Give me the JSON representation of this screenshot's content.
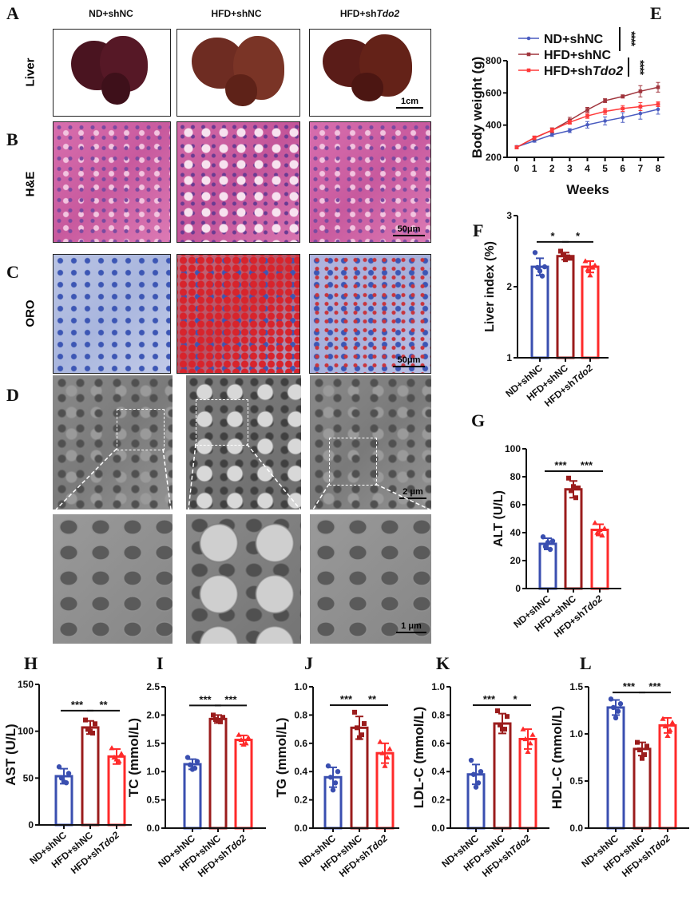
{
  "panel_letters": [
    "A",
    "B",
    "C",
    "D",
    "E",
    "F",
    "G",
    "H",
    "I",
    "J",
    "K",
    "L"
  ],
  "histology": {
    "columns": [
      {
        "main": "ND+shNC",
        "italic": ""
      },
      {
        "main": "HFD+shNC",
        "italic": ""
      },
      {
        "main": "HFD+sh",
        "italic": "Tdo2"
      }
    ],
    "row_labels": {
      "liver": "Liver",
      "he": "H&E",
      "oro": "ORO"
    },
    "scale_bars": {
      "liver": "1cm",
      "he": "50μm",
      "oro": "50μm",
      "tem_low": "2 μm",
      "tem_high": "1 μm"
    }
  },
  "colors": {
    "ND+shNC": "#3a4fb0",
    "HFD+shNC": "#9b1c1c",
    "HFD+shTdo2": "#ff2a2a"
  },
  "chart_data": [
    {
      "id": "E",
      "type": "line",
      "xlabel": "Weeks",
      "ylabel": "Body weight (g)",
      "x": [
        0,
        1,
        2,
        3,
        4,
        5,
        6,
        7,
        8
      ],
      "xticks": [
        "0",
        "1",
        "2",
        "3",
        "4",
        "5",
        "6",
        "7",
        "8"
      ],
      "ylim": [
        200,
        800
      ],
      "yticks": [
        "200",
        "400",
        "600",
        "800"
      ],
      "series": [
        {
          "name": {
            "main": "ND+shNC",
            "italic": ""
          },
          "color": "#4a5cc0",
          "values": [
            265,
            302,
            340,
            366,
            402,
            426,
            447,
            472,
            498
          ],
          "sd": [
            8,
            8,
            10,
            12,
            20,
            25,
            30,
            35,
            30
          ]
        },
        {
          "name": {
            "main": "HFD+shNC",
            "italic": ""
          },
          "color": "#a0353d",
          "values": [
            262,
            320,
            368,
            430,
            495,
            552,
            578,
            610,
            635
          ],
          "sd": [
            8,
            12,
            15,
            18,
            15,
            12,
            10,
            35,
            30
          ]
        },
        {
          "name": {
            "main": "HFD+sh",
            "italic": "Tdo2"
          },
          "color": "#ff3a3a",
          "values": [
            262,
            322,
            368,
            418,
            457,
            485,
            503,
            515,
            530
          ],
          "sd": [
            8,
            10,
            12,
            12,
            15,
            18,
            18,
            25,
            15
          ]
        }
      ],
      "significance": [
        "****",
        "****"
      ]
    },
    {
      "id": "F",
      "type": "bar",
      "ylabel": "Liver index (%)",
      "ylim": [
        1,
        3
      ],
      "yticks": [
        "1",
        "2",
        "3"
      ],
      "categories": [
        {
          "main": "ND+shNC",
          "italic": ""
        },
        {
          "main": "HFD+shNC",
          "italic": ""
        },
        {
          "main": "HFD+sh",
          "italic": "Tdo2"
        }
      ],
      "values": [
        2.28,
        2.43,
        2.28
      ],
      "sd": [
        0.12,
        0.05,
        0.08
      ],
      "points": [
        [
          2.48,
          2.28,
          2.27,
          2.15,
          2.22
        ],
        [
          2.5,
          2.4,
          2.45,
          2.42,
          2.38
        ],
        [
          2.36,
          2.3,
          2.24,
          2.27,
          2.16
        ]
      ],
      "significance": [
        {
          "pair": [
            0,
            1
          ],
          "label": "*",
          "y": 2.63
        },
        {
          "pair": [
            1,
            2
          ],
          "label": "*",
          "y": 2.63
        }
      ]
    },
    {
      "id": "G",
      "type": "bar",
      "ylabel": "ALT (U/L)",
      "ylim": [
        0,
        100
      ],
      "yticks": [
        "0",
        "20",
        "40",
        "60",
        "80",
        "100"
      ],
      "categories": [
        {
          "main": "ND+shNC",
          "italic": ""
        },
        {
          "main": "HFD+shNC",
          "italic": ""
        },
        {
          "main": "HFD+sh",
          "italic": "Tdo2"
        }
      ],
      "values": [
        32,
        71,
        42
      ],
      "sd": [
        4,
        6,
        4
      ],
      "points": [
        [
          37,
          34,
          30,
          28,
          33
        ],
        [
          79,
          72,
          70,
          65,
          73
        ],
        [
          47,
          43,
          40,
          38,
          42
        ]
      ],
      "significance": [
        {
          "pair": [
            0,
            1
          ],
          "label": "***",
          "y": 84
        },
        {
          "pair": [
            1,
            2
          ],
          "label": "***",
          "y": 84
        }
      ]
    },
    {
      "id": "H",
      "type": "bar",
      "ylabel": "AST (U/L)",
      "ylim": [
        0,
        150
      ],
      "yticks": [
        "0",
        "50",
        "100",
        "150"
      ],
      "categories": [
        {
          "main": "ND+shNC",
          "italic": ""
        },
        {
          "main": "HFD+shNC",
          "italic": ""
        },
        {
          "main": "HFD+sh",
          "italic": "Tdo2"
        }
      ],
      "values": [
        52,
        104,
        73
      ],
      "sd": [
        8,
        7,
        8
      ],
      "points": [
        [
          62,
          55,
          50,
          45,
          46
        ],
        [
          112,
          108,
          102,
          98,
          100
        ],
        [
          82,
          76,
          72,
          68,
          70
        ]
      ],
      "significance": [
        {
          "pair": [
            0,
            1
          ],
          "label": "***",
          "y": 122
        },
        {
          "pair": [
            1,
            2
          ],
          "label": "**",
          "y": 122
        }
      ]
    },
    {
      "id": "I",
      "type": "bar",
      "ylabel": "TC (mmol/L)",
      "ylim": [
        0,
        2.5
      ],
      "yticks": [
        "0.0",
        "0.5",
        "1.0",
        "1.5",
        "2.0",
        "2.5"
      ],
      "categories": [
        {
          "main": "ND+shNC",
          "italic": ""
        },
        {
          "main": "HFD+shNC",
          "italic": ""
        },
        {
          "main": "HFD+sh",
          "italic": "Tdo2"
        }
      ],
      "values": [
        1.13,
        1.93,
        1.56
      ],
      "sd": [
        0.09,
        0.07,
        0.08
      ],
      "points": [
        [
          1.25,
          1.18,
          1.12,
          1.06,
          1.04
        ],
        [
          2.0,
          1.96,
          1.92,
          1.88,
          1.9
        ],
        [
          1.65,
          1.6,
          1.56,
          1.5,
          1.48
        ]
      ],
      "significance": [
        {
          "pair": [
            0,
            1
          ],
          "label": "***",
          "y": 2.17
        },
        {
          "pair": [
            1,
            2
          ],
          "label": "***",
          "y": 2.17
        }
      ]
    },
    {
      "id": "J",
      "type": "bar",
      "ylabel": "TG (mmol/L)",
      "ylim": [
        0,
        1.0
      ],
      "yticks": [
        "0.0",
        "0.2",
        "0.4",
        "0.6",
        "0.8",
        "1.0"
      ],
      "categories": [
        {
          "main": "ND+shNC",
          "italic": ""
        },
        {
          "main": "HFD+shNC",
          "italic": ""
        },
        {
          "main": "HFD+sh",
          "italic": "Tdo2"
        }
      ],
      "values": [
        0.36,
        0.71,
        0.53
      ],
      "sd": [
        0.07,
        0.08,
        0.07
      ],
      "points": [
        [
          0.44,
          0.4,
          0.36,
          0.32,
          0.27
        ],
        [
          0.82,
          0.74,
          0.71,
          0.66,
          0.64
        ],
        [
          0.61,
          0.56,
          0.53,
          0.5,
          0.44
        ]
      ],
      "significance": [
        {
          "pair": [
            0,
            1
          ],
          "label": "***",
          "y": 0.87
        },
        {
          "pair": [
            1,
            2
          ],
          "label": "**",
          "y": 0.87
        }
      ]
    },
    {
      "id": "K",
      "type": "bar",
      "ylabel": "LDL-C (mmol/L)",
      "ylim": [
        0,
        1.0
      ],
      "yticks": [
        "0.0",
        "0.2",
        "0.4",
        "0.6",
        "0.8",
        "1.0"
      ],
      "categories": [
        {
          "main": "ND+shNC",
          "italic": ""
        },
        {
          "main": "HFD+shNC",
          "italic": ""
        },
        {
          "main": "HFD+sh",
          "italic": "Tdo2"
        }
      ],
      "values": [
        0.38,
        0.74,
        0.63
      ],
      "sd": [
        0.07,
        0.07,
        0.07
      ],
      "points": [
        [
          0.48,
          0.4,
          0.38,
          0.32,
          0.29
        ],
        [
          0.83,
          0.79,
          0.73,
          0.7,
          0.7
        ],
        [
          0.7,
          0.66,
          0.63,
          0.6,
          0.54
        ]
      ],
      "significance": [
        {
          "pair": [
            0,
            1
          ],
          "label": "***",
          "y": 0.87
        },
        {
          "pair": [
            1,
            2
          ],
          "label": "*",
          "y": 0.87
        }
      ]
    },
    {
      "id": "L",
      "type": "bar",
      "ylabel": "HDL-C (mmol/L)",
      "ylim": [
        0,
        1.5
      ],
      "yticks": [
        "0.0",
        "0.5",
        "1.0",
        "1.5"
      ],
      "categories": [
        {
          "main": "ND+shNC",
          "italic": ""
        },
        {
          "main": "HFD+shNC",
          "italic": ""
        },
        {
          "main": "HFD+sh",
          "italic": "Tdo2"
        }
      ],
      "values": [
        1.28,
        0.84,
        1.09
      ],
      "sd": [
        0.08,
        0.07,
        0.08
      ],
      "points": [
        [
          1.37,
          1.32,
          1.28,
          1.24,
          1.17
        ],
        [
          0.91,
          0.87,
          0.83,
          0.78,
          0.74
        ],
        [
          1.16,
          1.12,
          1.08,
          1.04,
          0.98
        ]
      ],
      "significance": [
        {
          "pair": [
            0,
            1
          ],
          "label": "***",
          "y": 1.44
        },
        {
          "pair": [
            1,
            2
          ],
          "label": "***",
          "y": 1.44
        }
      ]
    }
  ]
}
